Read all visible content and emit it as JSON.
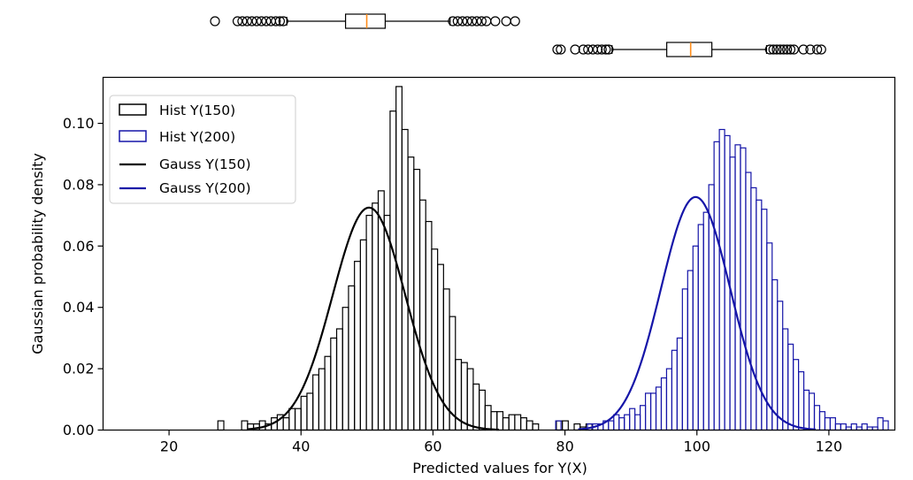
{
  "chart_data": {
    "type": "bar",
    "xlabel": "Predicted values for Y(X)",
    "ylabel": "Gaussian probability density",
    "xlim": [
      10,
      130
    ],
    "ylim": [
      0,
      0.115
    ],
    "xticks": [
      20,
      40,
      60,
      80,
      100,
      120
    ],
    "yticks": [
      0.0,
      0.02,
      0.04,
      0.06,
      0.08,
      0.1
    ],
    "legend_position": "top-left",
    "legend": [
      "Hist Y(150)",
      "Hist Y(200)",
      "Gauss Y(150)",
      "Gauss Y(200)"
    ],
    "colors": {
      "series_150": "#000000",
      "series_200": "#1515a8",
      "box_median": "#ff8c1a"
    },
    "histograms": [
      {
        "name": "Hist Y(150)",
        "bin_width": 0.9,
        "bin_start": 27.4,
        "densities": [
          0.003,
          0,
          0,
          0,
          0.003,
          0.002,
          0.002,
          0.003,
          0.002,
          0.004,
          0.005,
          0.004,
          0.007,
          0.007,
          0.011,
          0.012,
          0.018,
          0.02,
          0.024,
          0.03,
          0.033,
          0.04,
          0.047,
          0.055,
          0.062,
          0.07,
          0.074,
          0.078,
          0.07,
          0.104,
          0.112,
          0.098,
          0.089,
          0.085,
          0.075,
          0.068,
          0.059,
          0.054,
          0.046,
          0.037,
          0.023,
          0.022,
          0.02,
          0.015,
          0.013,
          0.008,
          0.006,
          0.006,
          0.004,
          0.005,
          0.005,
          0.004,
          0.003,
          0.002,
          0,
          0,
          0,
          0.003,
          0.003,
          0,
          0.002,
          0.001,
          0.002
        ]
      },
      {
        "name": "Hist Y(200)",
        "bin_width": 0.8,
        "bin_start": 78.6,
        "densities": [
          0.003,
          0,
          0,
          0,
          0,
          0,
          0.002,
          0.002,
          0.002,
          0.003,
          0.003,
          0.005,
          0.004,
          0.005,
          0.007,
          0.005,
          0.008,
          0.012,
          0.012,
          0.014,
          0.017,
          0.02,
          0.026,
          0.03,
          0.046,
          0.052,
          0.06,
          0.067,
          0.071,
          0.08,
          0.094,
          0.098,
          0.096,
          0.089,
          0.093,
          0.092,
          0.084,
          0.079,
          0.075,
          0.072,
          0.061,
          0.049,
          0.042,
          0.033,
          0.028,
          0.023,
          0.019,
          0.013,
          0.012,
          0.008,
          0.006,
          0.004,
          0.004,
          0.002,
          0.002,
          0.001,
          0.002,
          0.001,
          0.002,
          0.001,
          0.001,
          0.004,
          0.003
        ]
      }
    ],
    "gaussians": [
      {
        "name": "Gauss Y(150)",
        "mean": 50.3,
        "sd": 5.5,
        "x_range": [
          32,
          70
        ]
      },
      {
        "name": "Gauss Y(200)",
        "mean": 99.8,
        "sd": 5.25,
        "x_range": [
          82,
          118
        ]
      }
    ],
    "boxplots": [
      {
        "name": "Y(150)",
        "q1": 47.1,
        "median": 50.2,
        "q3": 52.9,
        "whisker_low": 38.5,
        "whisker_high": 62.4,
        "outliers": [
          28.0,
          31.3,
          32.0,
          32.7,
          33.4,
          34.1,
          34.8,
          35.5,
          36.2,
          36.9,
          37.5,
          38.0,
          62.8,
          63.5,
          64.2,
          64.9,
          65.6,
          66.3,
          67.0,
          67.7,
          69.0,
          70.6,
          71.9
        ]
      },
      {
        "name": "Y(200)",
        "q1": 96.4,
        "median": 99.9,
        "q3": 103.0,
        "whisker_low": 88.4,
        "whisker_high": 111.0,
        "outliers": [
          80.4,
          80.9,
          83.0,
          84.2,
          84.9,
          85.6,
          86.3,
          86.9,
          87.5,
          87.9,
          111.5,
          112.0,
          112.5,
          113.0,
          113.5,
          114.0,
          114.5,
          115.0,
          116.4,
          117.4,
          118.4,
          119.0
        ]
      }
    ]
  }
}
